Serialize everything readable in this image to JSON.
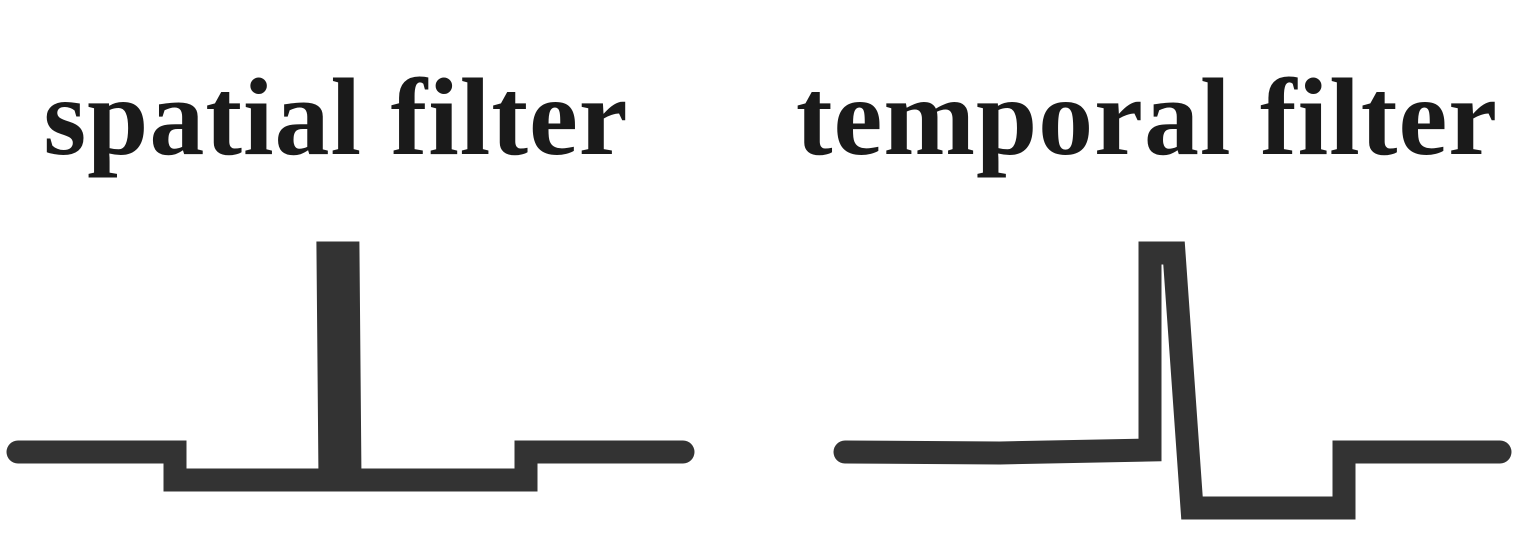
{
  "diagram": {
    "stroke_color": "#333333",
    "background_color": "#ffffff",
    "panels": [
      {
        "title": "spatial filter",
        "icon": "narrow-pulse-with-side-dips"
      },
      {
        "title": "temporal filter",
        "icon": "narrow-pulse-followed-by-dip"
      }
    ]
  }
}
